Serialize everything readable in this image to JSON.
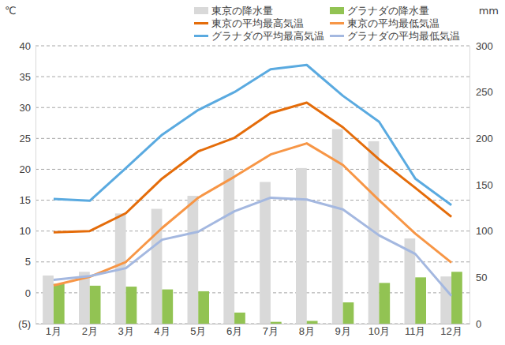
{
  "chart_data": {
    "type": "bar",
    "y_label": "℃",
    "y2_label": "mm",
    "categories": [
      "1月",
      "2月",
      "3月",
      "4月",
      "5月",
      "6月",
      "7月",
      "8月",
      "9月",
      "10月",
      "11月",
      "12月"
    ],
    "series": [
      {
        "name": "東京の降水量",
        "type": "bar",
        "axis": "y2",
        "color": "#d9d9d9",
        "values": [
          52,
          56,
          119,
          124,
          138,
          166,
          153,
          168,
          210,
          197,
          92,
          51
        ]
      },
      {
        "name": "グラナダの降水量",
        "type": "bar",
        "axis": "y2",
        "color": "#92c353",
        "values": [
          43,
          41,
          40,
          37,
          35,
          12,
          2,
          3,
          23,
          44,
          50,
          56
        ]
      },
      {
        "name": "東京の平均最高気温",
        "type": "line",
        "color": "#e46c0a",
        "values": [
          9.8,
          10.0,
          12.9,
          18.5,
          22.9,
          25.1,
          29.1,
          30.8,
          26.8,
          21.6,
          17.0,
          12.3
        ]
      },
      {
        "name": "東京の平均最低気温",
        "type": "line",
        "color": "#f79646",
        "values": [
          1.2,
          2.6,
          5.0,
          10.5,
          15.4,
          18.8,
          22.4,
          24.2,
          20.7,
          15.0,
          9.6,
          4.9
        ]
      },
      {
        "name": "グラナダの平均最高気温",
        "type": "line",
        "color": "#5aaae0",
        "values": [
          15.2,
          14.9,
          20.2,
          25.6,
          29.6,
          32.5,
          36.2,
          36.9,
          31.9,
          27.7,
          18.5,
          14.2
        ]
      },
      {
        "name": "グラナダの平均最低気温",
        "type": "line",
        "color": "#a4b8e0",
        "values": [
          2.1,
          2.7,
          4.0,
          8.6,
          9.9,
          13.2,
          15.4,
          15.1,
          13.5,
          9.3,
          6.3,
          -0.5
        ]
      }
    ],
    "ylim": [
      -5,
      40
    ],
    "yticks": [
      {
        "value": -5,
        "label": "(5)"
      },
      0,
      5,
      10,
      15,
      20,
      25,
      30,
      35,
      40
    ],
    "y2lim": [
      0,
      300
    ],
    "y2ticks": [
      0,
      50,
      100,
      150,
      200,
      250,
      300
    ],
    "grid": true,
    "legend": "top-right"
  }
}
